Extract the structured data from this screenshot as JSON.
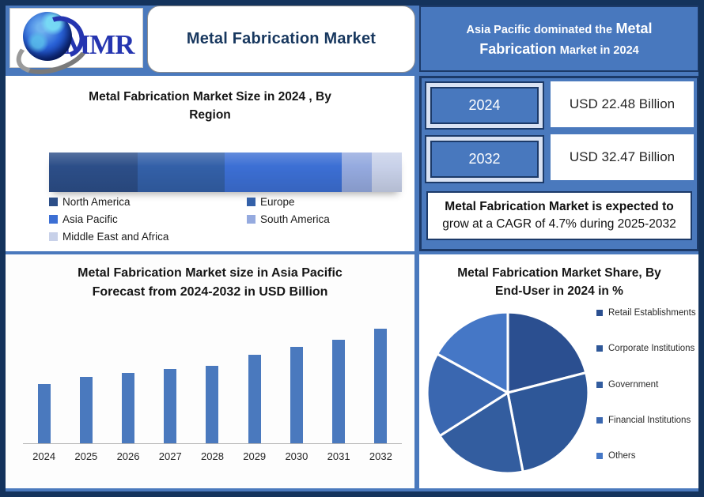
{
  "brand": {
    "logo_text": "MMR"
  },
  "header": {
    "title": "Metal Fabrication Market",
    "headline": {
      "line1_regular": "Asia Pacific dominated the",
      "line1_large": "Metal",
      "line2_large": "Fabrication",
      "line2_regular": "Market in 2024"
    }
  },
  "stats": {
    "row1": {
      "year": "2024",
      "value": "USD 22.48 Billion"
    },
    "row2": {
      "year": "2032",
      "value": "USD 32.47 Billion"
    },
    "cagr_line1": "Metal Fabrication Market is expected to",
    "cagr_line2": "grow at a CAGR of 4.7% during 2025-2032"
  },
  "colors": {
    "outer_border": "#14335C",
    "background_blue": "#4A79BD",
    "navy": "#1C3A69",
    "navy_text": "#17375E",
    "badge_frame": "#D9E2F3"
  },
  "chart_data": [
    {
      "id": "region-share-2024",
      "type": "bar",
      "subtype": "stacked-horizontal-single-bar",
      "title": "Metal Fabrication Market Size in 2024 , By Region",
      "categories": [
        "North America",
        "Europe",
        "Asia Pacific",
        "South America",
        "Middle East and Africa"
      ],
      "values": [
        25,
        24.8,
        33.2,
        8.5,
        8.5
      ],
      "unit": "% of bar length (estimated from segment widths; no numeric labels shown)",
      "colors": [
        "#2C4E88",
        "#3360A8",
        "#3C6FD4",
        "#95AADF",
        "#C8D1E9"
      ],
      "legend_position": "bottom",
      "grid": false
    },
    {
      "id": "asia-pacific-forecast",
      "type": "bar",
      "title": "Metal Fabrication Market size in Asia Pacific Forecast from 2024-2032 in USD Billion",
      "categories": [
        "2024",
        "2025",
        "2026",
        "2027",
        "2028",
        "2029",
        "2030",
        "2031",
        "2032"
      ],
      "values": [
        7.5,
        8.4,
        8.9,
        9.4,
        9.8,
        11.2,
        12.2,
        13.1,
        14.5
      ],
      "ylabel": "USD Billion",
      "ylim": [
        0,
        15
      ],
      "grid": false,
      "bar_color": "#4A79BE",
      "note": "no y-axis shown; values estimated from relative bar heights"
    },
    {
      "id": "end-user-share-2024",
      "type": "pie",
      "title": "Metal Fabrication Market Share, By End-User in 2024 in %",
      "categories": [
        "Retail Establishments",
        "Corporate Institutions",
        "Government",
        "Financial Institutions",
        "Others"
      ],
      "values": [
        21,
        26,
        19,
        17,
        17
      ],
      "unit": "% (estimated from slice angles; no data labels shown)",
      "colors": [
        "#2B4F90",
        "#2E5798",
        "#335D9F",
        "#3A67B0",
        "#4577C6"
      ],
      "start_angle_deg": 0,
      "clockwise": true,
      "legend_position": "right"
    }
  ]
}
